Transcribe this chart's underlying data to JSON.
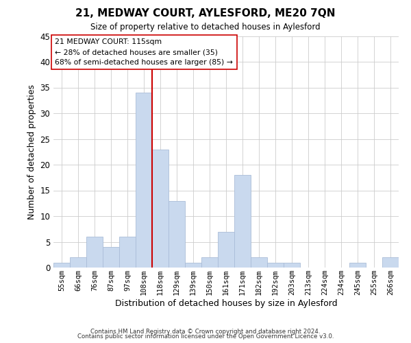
{
  "title": "21, MEDWAY COURT, AYLESFORD, ME20 7QN",
  "subtitle": "Size of property relative to detached houses in Aylesford",
  "xlabel": "Distribution of detached houses by size in Aylesford",
  "ylabel": "Number of detached properties",
  "bar_labels": [
    "55sqm",
    "66sqm",
    "76sqm",
    "87sqm",
    "97sqm",
    "108sqm",
    "118sqm",
    "129sqm",
    "139sqm",
    "150sqm",
    "161sqm",
    "171sqm",
    "182sqm",
    "192sqm",
    "203sqm",
    "213sqm",
    "224sqm",
    "234sqm",
    "245sqm",
    "255sqm",
    "266sqm"
  ],
  "bar_values": [
    1,
    2,
    6,
    4,
    6,
    34,
    23,
    13,
    1,
    2,
    7,
    18,
    2,
    1,
    1,
    0,
    0,
    0,
    1,
    0,
    2
  ],
  "bar_color": "#c9d9ee",
  "bar_edge_color": "#aabdd8",
  "vline_x": 5.5,
  "vline_color": "#cc0000",
  "annotation_title": "21 MEDWAY COURT: 115sqm",
  "annotation_line1": "← 28% of detached houses are smaller (35)",
  "annotation_line2": "68% of semi-detached houses are larger (85) →",
  "annotation_box_color": "#ffffff",
  "annotation_box_edge": "#cc0000",
  "ylim": [
    0,
    45
  ],
  "yticks": [
    0,
    5,
    10,
    15,
    20,
    25,
    30,
    35,
    40,
    45
  ],
  "footer1": "Contains HM Land Registry data © Crown copyright and database right 2024.",
  "footer2": "Contains public sector information licensed under the Open Government Licence v3.0.",
  "bg_color": "#ffffff",
  "grid_color": "#cccccc"
}
